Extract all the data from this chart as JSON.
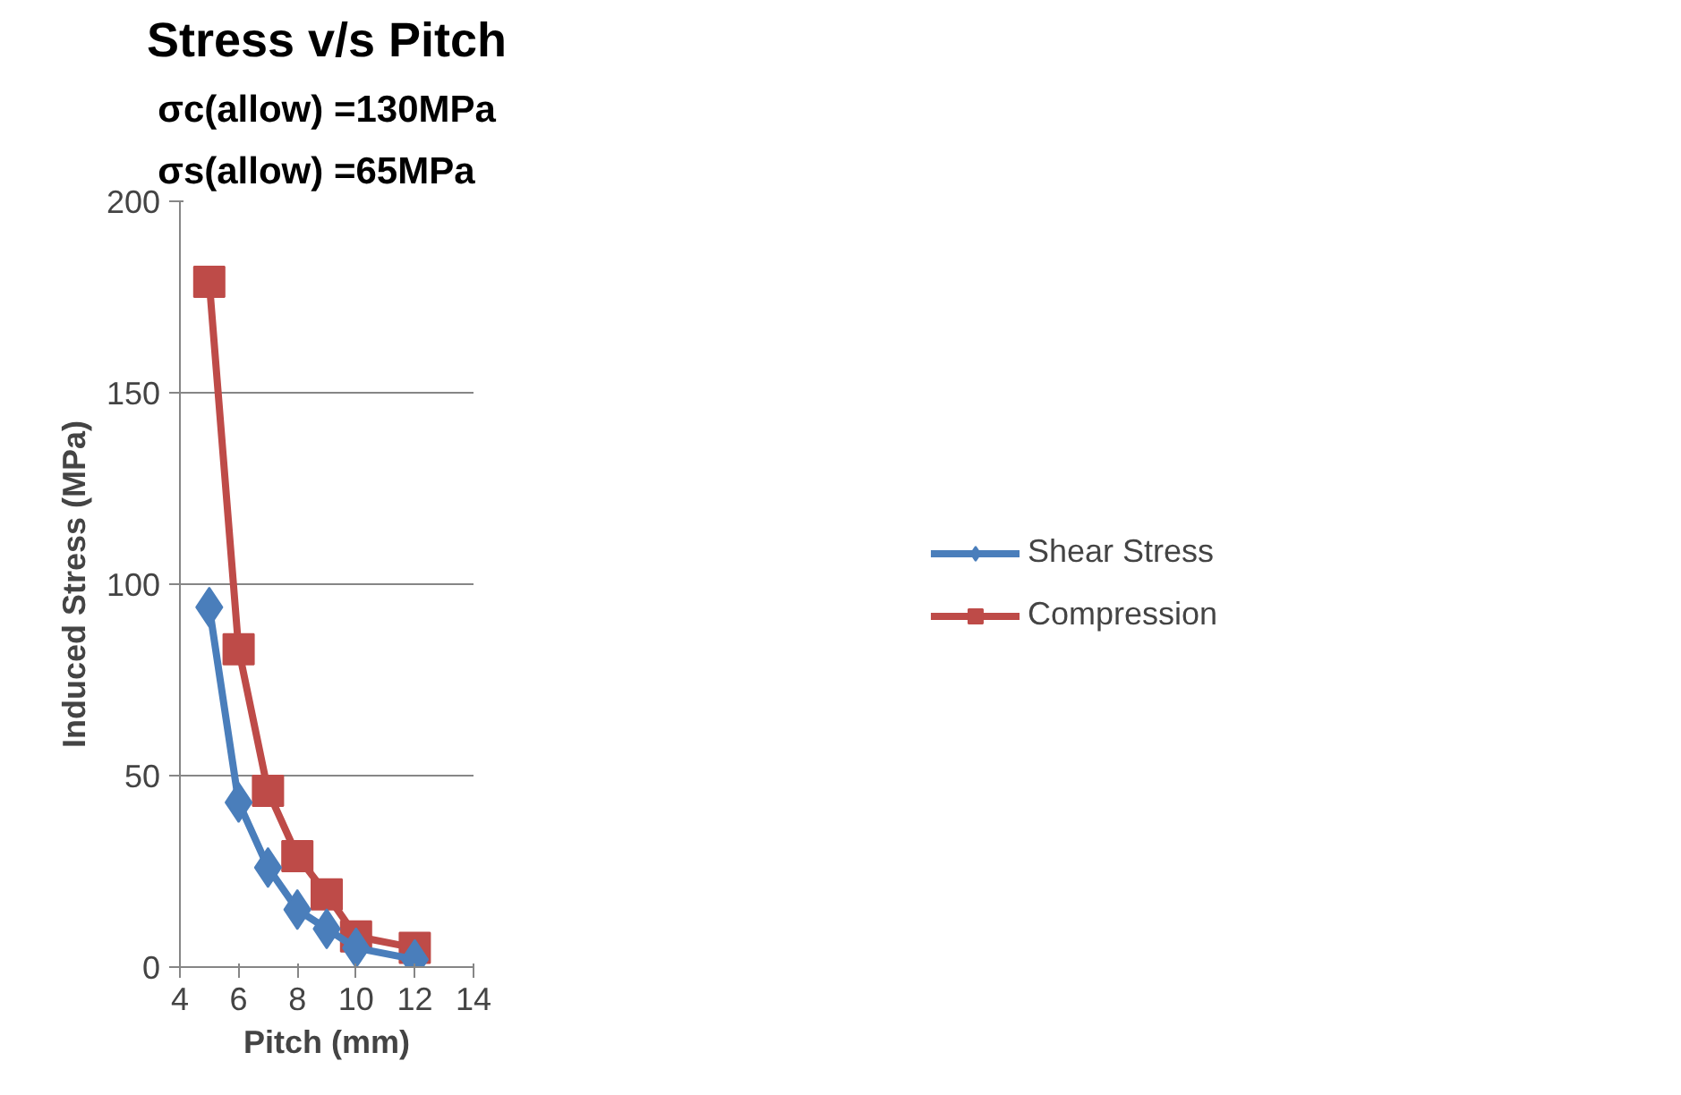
{
  "chart_data": {
    "type": "line",
    "title": "Stress v/s Pitch",
    "subtitle": "σc(allow) =130MPa\nσs(allow) =65MPa",
    "xlabel": "Pitch (mm)",
    "ylabel": "Induced Stress (MPa)",
    "x": [
      5,
      6,
      7,
      8,
      9,
      10,
      12
    ],
    "series": [
      {
        "name": "Shear Stress",
        "color": "#4a7ebb",
        "marker": "diamond",
        "values": [
          94,
          43,
          26,
          15,
          10,
          5,
          2
        ]
      },
      {
        "name": "Compression",
        "color": "#be4b48",
        "marker": "square",
        "values": [
          179,
          83,
          46,
          29,
          19,
          8,
          5
        ]
      }
    ],
    "xlim": [
      4,
      14
    ],
    "xticks": [
      4,
      6,
      8,
      10,
      12,
      14
    ],
    "ylim": [
      0,
      200
    ],
    "yticks": [
      0,
      50,
      100,
      150,
      200
    ],
    "grid": "y",
    "legend": "right"
  }
}
